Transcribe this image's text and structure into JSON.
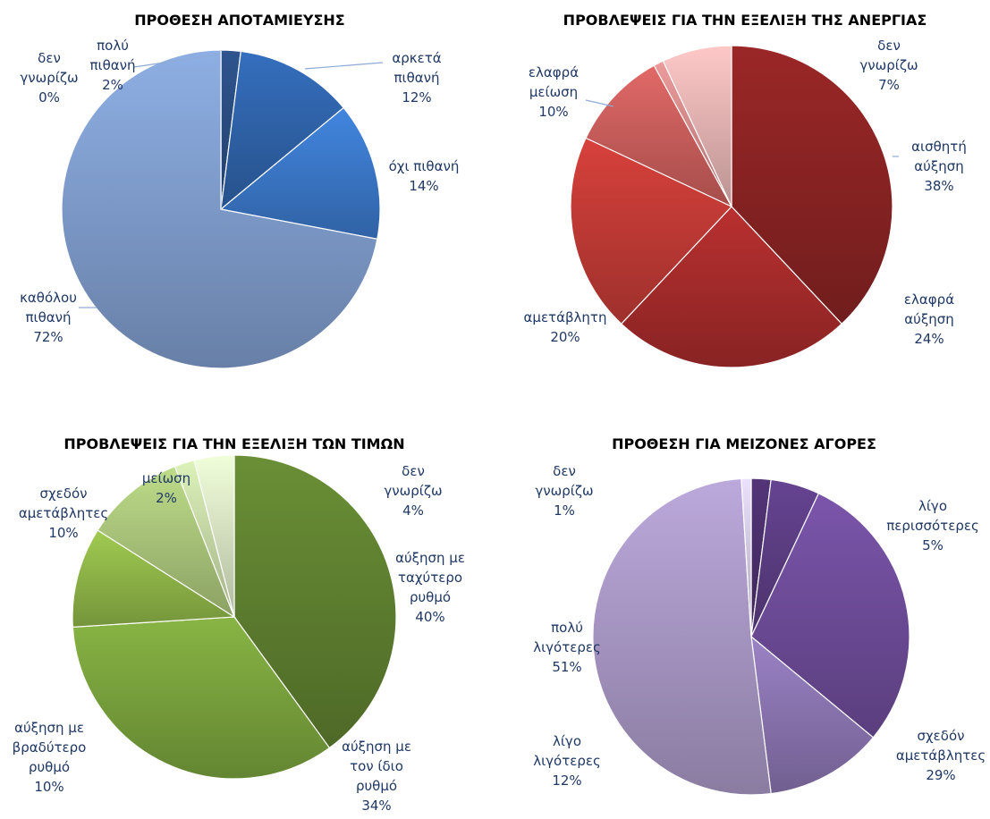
{
  "chart_data": [
    {
      "type": "pie",
      "title": "ΠΡΟΘΕΣΗ ΑΠΟΤΑΜΙΕΥΣΗΣ",
      "slices": [
        {
          "label": [
            "πολύ",
            "πιθανή"
          ],
          "value": 2,
          "value_text": "2%",
          "color": "#2a4c80"
        },
        {
          "label": [
            "αρκετά",
            "πιθανή"
          ],
          "value": 12,
          "value_text": "12%",
          "color": "#2f63aa"
        },
        {
          "label": [
            "όχι πιθανή"
          ],
          "value": 14,
          "value_text": "14%",
          "color": "#3b78c8"
        },
        {
          "label": [
            "καθόλου",
            "πιθανή"
          ],
          "value": 72,
          "value_text": "72%",
          "color": "#7f9ccc"
        },
        {
          "label": [
            "δεν",
            "γνωρίζω"
          ],
          "value": 0,
          "value_text": "0%",
          "color": "#c9d6ea"
        }
      ]
    },
    {
      "type": "pie",
      "title": "ΠΡΟΒΛΕΨΕΙΣ ΓΙΑ ΤΗΝ ΕΞΕΛΙΞΗ ΤΗΣ ΑΝΕΡΓΙΑΣ",
      "slices": [
        {
          "label": [
            "αισθητή",
            "αύξηση"
          ],
          "value": 38,
          "value_text": "38%",
          "color": "#8a2323"
        },
        {
          "label": [
            "ελαφρά",
            "αύξηση"
          ],
          "value": 24,
          "value_text": "24%",
          "color": "#a62b2b"
        },
        {
          "label": [
            "αμετάβλητη"
          ],
          "value": 20,
          "value_text": "20%",
          "color": "#c13a36"
        },
        {
          "label": [
            "ελαφρά",
            "μείωση"
          ],
          "value": 10,
          "value_text": "10%",
          "color": "#c95e5c"
        },
        {
          "label": [],
          "value": 1,
          "value_text": "",
          "color": "#d48a8a"
        },
        {
          "label": [
            "δεν",
            "γνωρίζω"
          ],
          "value": 7,
          "value_text": "7%",
          "color": "#e3b3b2"
        }
      ]
    },
    {
      "type": "pie",
      "title": "ΠΡΟΒΛΕΨΕΙΣ ΓΙΑ ΤΗΝ ΕΞΕΛΙΞΗ ΤΩΝ ΤΙΜΩΝ",
      "slices": [
        {
          "label": [
            "αύξηση με",
            "ταχύτερο",
            "ρυθμό"
          ],
          "value": 40,
          "value_text": "40%",
          "color": "#5f8030"
        },
        {
          "label": [
            "αύξηση με",
            "τον ίδιο",
            "ρυθμό"
          ],
          "value": 34,
          "value_text": "34%",
          "color": "#79a23d"
        },
        {
          "label": [
            "αύξηση με",
            "βραδύτερο",
            "ρυθμό"
          ],
          "value": 10,
          "value_text": "10%",
          "color": "#8fb548"
        },
        {
          "label": [
            "σχεδόν",
            "αμετάβλητες"
          ],
          "value": 10,
          "value_text": "10%",
          "color": "#a9c47a"
        },
        {
          "label": [
            "μείωση"
          ],
          "value": 2,
          "value_text": "2%",
          "color": "#c5d8a6"
        },
        {
          "label": [
            "δεν",
            "γνωρίζω"
          ],
          "value": 4,
          "value_text": "4%",
          "color": "#d7e3c3"
        }
      ]
    },
    {
      "type": "pie",
      "title": "ΠΡΟΘΕΣΗ ΓΙΑ ΜΕΙΖΟΝΕΣ ΑΓΟΡΕΣ",
      "slices": [
        {
          "label": [],
          "value": 2,
          "value_text": "",
          "color": "#4a2f6b"
        },
        {
          "label": [
            "λίγο",
            "περισσότερες"
          ],
          "value": 5,
          "value_text": "5%",
          "color": "#5b3d82"
        },
        {
          "label": [
            "σχεδόν",
            "αμετάβλητες"
          ],
          "value": 29,
          "value_text": "29%",
          "color": "#6e4c99"
        },
        {
          "label": [
            "λίγο",
            "λιγότερες"
          ],
          "value": 12,
          "value_text": "12%",
          "color": "#8a74b0"
        },
        {
          "label": [
            "πολύ",
            "λιγότερες"
          ],
          "value": 51,
          "value_text": "51%",
          "color": "#a897c4"
        },
        {
          "label": [
            "δεν",
            "γνωρίζω"
          ],
          "value": 1,
          "value_text": "1%",
          "color": "#d2c9e1"
        }
      ]
    }
  ]
}
